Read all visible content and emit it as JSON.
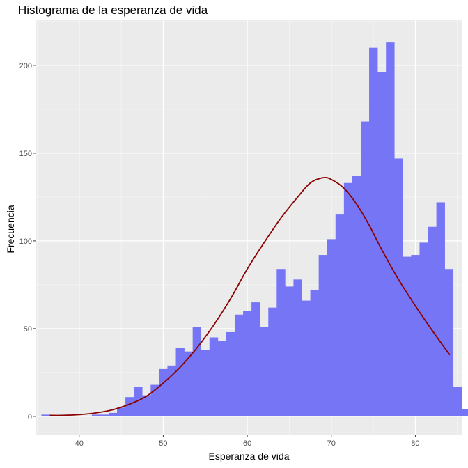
{
  "chart_data": {
    "type": "bar",
    "title": "Histograma de la esperanza de vida",
    "xlabel": "Esperanza de vida",
    "ylabel": "Frecuencia",
    "xlim": [
      34.8,
      85.6
    ],
    "ylim": [
      -10.75,
      225.75
    ],
    "xticks": [
      "40",
      "50",
      "60",
      "70",
      "80"
    ],
    "yticks": [
      "0",
      "50",
      "100",
      "150",
      "200"
    ],
    "bin_width": 1.0,
    "bin_start": 35.5,
    "values": [
      1,
      0,
      0,
      0,
      0,
      0,
      1,
      1,
      2,
      5,
      11,
      17,
      12,
      18,
      27,
      29,
      39,
      37,
      51,
      38,
      45,
      43,
      48,
      58,
      60,
      65,
      51,
      62,
      84,
      74,
      78,
      66,
      72,
      92,
      101,
      115,
      133,
      137,
      168,
      210,
      196,
      213,
      147,
      91,
      92,
      99,
      108,
      122,
      84,
      17,
      4
    ],
    "bar_color": "#7575f5",
    "curve_color": "#8b0000",
    "density_curve": [
      [
        36.5,
        0.6
      ],
      [
        38,
        0.6
      ],
      [
        40,
        1.0
      ],
      [
        42,
        2.0
      ],
      [
        44,
        3.8
      ],
      [
        46,
        7.0
      ],
      [
        48,
        11.5
      ],
      [
        50,
        19
      ],
      [
        52,
        28
      ],
      [
        54,
        39
      ],
      [
        56,
        52
      ],
      [
        58,
        67
      ],
      [
        60,
        84
      ],
      [
        62,
        99
      ],
      [
        64,
        113
      ],
      [
        66,
        125
      ],
      [
        67.5,
        133
      ],
      [
        69,
        136
      ],
      [
        70,
        135
      ],
      [
        71.5,
        130
      ],
      [
        73,
        121
      ],
      [
        74.5,
        109
      ],
      [
        76,
        95
      ],
      [
        78,
        78
      ],
      [
        80,
        63
      ],
      [
        82,
        49
      ],
      [
        84.1,
        35
      ]
    ],
    "grid": true,
    "legend": "none"
  }
}
